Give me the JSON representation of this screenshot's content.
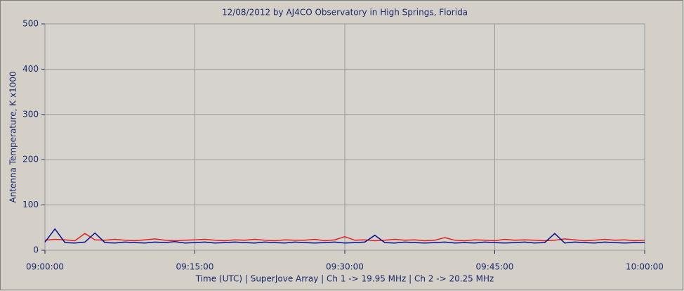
{
  "chart_data": {
    "type": "line",
    "title": "12/08/2012  by  AJ4CO Observatory  in  High Springs, Florida",
    "x_label": "Time (UTC)  |  SuperJove Array  |  Ch 1 -> 19.95 MHz  |  Ch 2 -> 20.25 MHz",
    "y_label": "Antenna Temperature, K x1000",
    "x": [
      "09:00:00",
      "09:01:00",
      "09:02:00",
      "09:03:00",
      "09:04:00",
      "09:05:00",
      "09:06:00",
      "09:07:00",
      "09:08:00",
      "09:09:00",
      "09:10:00",
      "09:11:00",
      "09:12:00",
      "09:13:00",
      "09:14:00",
      "09:15:00",
      "09:16:00",
      "09:17:00",
      "09:18:00",
      "09:19:00",
      "09:20:00",
      "09:21:00",
      "09:22:00",
      "09:23:00",
      "09:24:00",
      "09:25:00",
      "09:26:00",
      "09:27:00",
      "09:28:00",
      "09:29:00",
      "09:30:00",
      "09:31:00",
      "09:32:00",
      "09:33:00",
      "09:34:00",
      "09:35:00",
      "09:36:00",
      "09:37:00",
      "09:38:00",
      "09:39:00",
      "09:40:00",
      "09:41:00",
      "09:42:00",
      "09:43:00",
      "09:44:00",
      "09:45:00",
      "09:46:00",
      "09:47:00",
      "09:48:00",
      "09:49:00",
      "09:50:00",
      "09:51:00",
      "09:52:00",
      "09:53:00",
      "09:54:00",
      "09:55:00",
      "09:56:00",
      "09:57:00",
      "09:58:00",
      "09:59:00",
      "10:00:00"
    ],
    "series": [
      {
        "color": "#e02020",
        "values": [
          22,
          24,
          23,
          21,
          37,
          23,
          22,
          24,
          22,
          21,
          23,
          25,
          22,
          21,
          22,
          23,
          24,
          22,
          21,
          23,
          22,
          24,
          22,
          21,
          23,
          22,
          22,
          24,
          21,
          23,
          30,
          22,
          23,
          21,
          22,
          24,
          22,
          23,
          21,
          22,
          28,
          22,
          21,
          23,
          22,
          21,
          24,
          22,
          23,
          22,
          21,
          22,
          25,
          23,
          21,
          22,
          24,
          22,
          23,
          21,
          22
        ]
      },
      {
        "color": "#00108a",
        "values": [
          18,
          47,
          17,
          16,
          18,
          38,
          17,
          16,
          18,
          17,
          16,
          18,
          17,
          19,
          16,
          17,
          18,
          16,
          17,
          18,
          17,
          16,
          18,
          17,
          16,
          18,
          17,
          16,
          17,
          18,
          16,
          17,
          18,
          33,
          17,
          16,
          18,
          17,
          16,
          17,
          18,
          16,
          17,
          16,
          18,
          17,
          16,
          17,
          18,
          16,
          17,
          37,
          16,
          18,
          17,
          16,
          18,
          17,
          16,
          17,
          17
        ]
      }
    ],
    "xlim": [
      "09:00:00",
      "10:00:00"
    ],
    "xticks": [
      "09:00:00",
      "09:15:00",
      "09:30:00",
      "09:45:00",
      "10:00:00"
    ],
    "ylim": [
      0,
      500
    ],
    "yticks": [
      0,
      100,
      200,
      300,
      400,
      500
    ],
    "grid": true
  }
}
